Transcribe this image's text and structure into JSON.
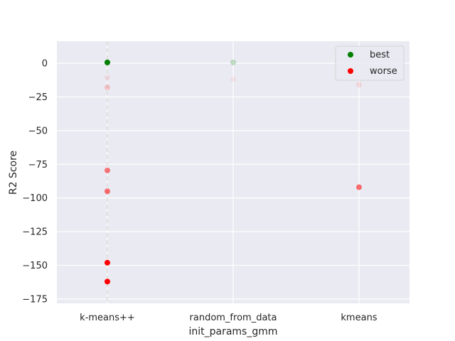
{
  "chart_data": {
    "type": "scatter",
    "title": "",
    "xlabel": "init_params_gmm",
    "ylabel": "R2 Score",
    "categories": [
      "k-means++",
      "random_from_data",
      "kmeans"
    ],
    "ylim": [
      -177,
      17
    ],
    "yticks": [
      0,
      -25,
      -50,
      -75,
      -100,
      -125,
      -150,
      -175
    ],
    "ytick_labels": [
      "0",
      "−25",
      "−50",
      "−75",
      "−100",
      "−125",
      "−150",
      "−175"
    ],
    "grid": true,
    "legend_position": "top-right",
    "legend": [
      {
        "label": "best",
        "color": "#008000"
      },
      {
        "label": "worse",
        "color": "#ff0000"
      }
    ],
    "points": [
      {
        "category": "k-means++",
        "y": 0.6,
        "color": "#008000",
        "alpha": 1.0
      },
      {
        "category": "k-means++",
        "y": -10.5,
        "color": "#ff0000",
        "alpha": 0.08
      },
      {
        "category": "k-means++",
        "y": -18,
        "color": "#ff0000",
        "alpha": 0.18
      },
      {
        "category": "k-means++",
        "y": -79.5,
        "color": "#ff0000",
        "alpha": 0.5
      },
      {
        "category": "k-means++",
        "y": -95,
        "color": "#ff0000",
        "alpha": 0.55
      },
      {
        "category": "k-means++",
        "y": -148,
        "color": "#ff0000",
        "alpha": 1.0
      },
      {
        "category": "k-means++",
        "y": -162,
        "color": "#ff0000",
        "alpha": 1.0
      },
      {
        "category": "random_from_data",
        "y": 0.6,
        "color": "#008000",
        "alpha": 0.22
      },
      {
        "category": "random_from_data",
        "y": -12,
        "color": "#ff0000",
        "alpha": 0.06
      },
      {
        "category": "kmeans",
        "y": -16,
        "color": "#ff0000",
        "alpha": 0.1
      },
      {
        "category": "kmeans",
        "y": -92,
        "color": "#ff0000",
        "alpha": 0.55
      }
    ]
  }
}
